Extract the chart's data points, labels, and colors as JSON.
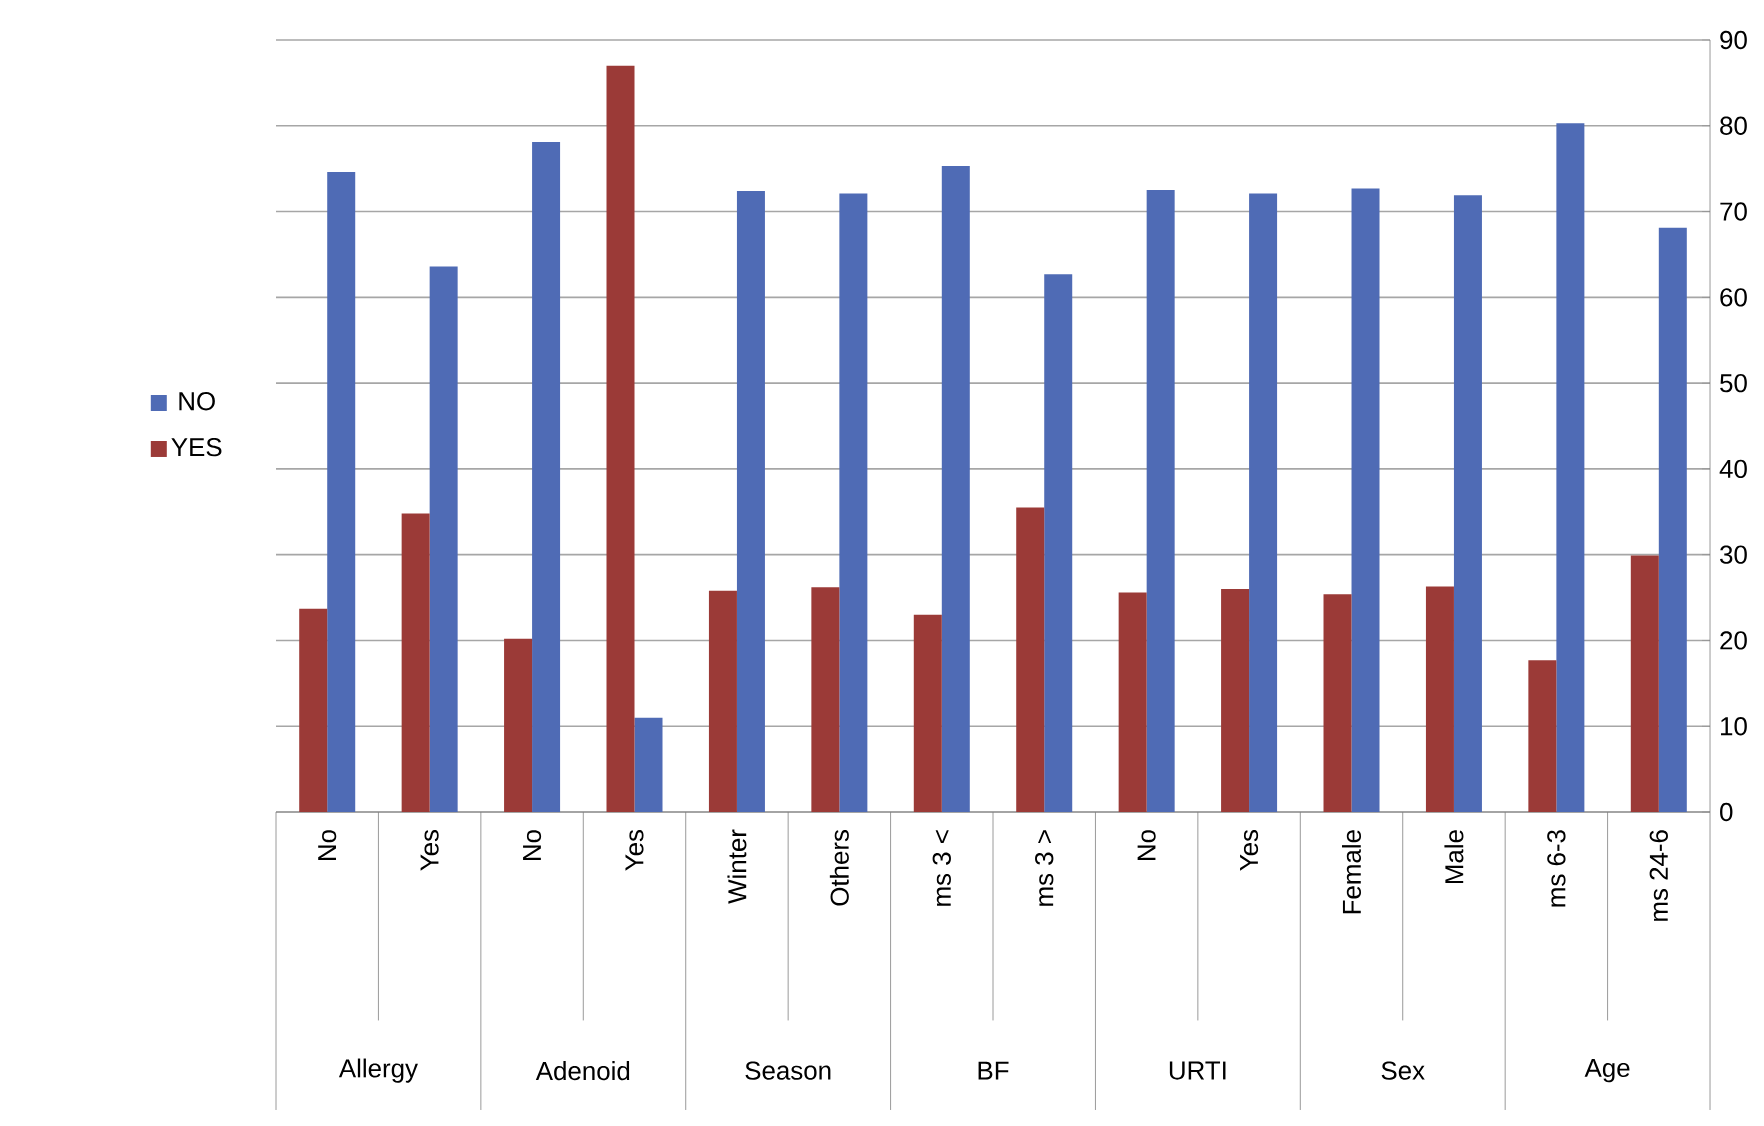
{
  "chart_data": {
    "type": "bar",
    "categories": [
      "No",
      "Yes",
      "No",
      "Yes",
      "Winter",
      "Others",
      "ms 3 <",
      "ms 3 >",
      "No",
      "Yes",
      "Female",
      "Male",
      "ms 6-3",
      "ms 24-6"
    ],
    "series": [
      {
        "name": "NO",
        "color": "#4f6bb5",
        "values": [
          74.6,
          63.6,
          78.1,
          11.0,
          72.4,
          72.1,
          75.3,
          62.7,
          72.5,
          72.1,
          72.7,
          71.9,
          80.3,
          68.1
        ]
      },
      {
        "name": "YES",
        "color": "#9b3a37",
        "values": [
          23.7,
          34.8,
          20.2,
          87.0,
          25.8,
          26.2,
          23.0,
          35.5,
          25.6,
          26.0,
          25.4,
          26.3,
          17.7,
          29.9
        ]
      }
    ],
    "annotations": [
      "Allergy",
      "Adenoid",
      "Season",
      "BF",
      "URTI",
      "Sex",
      "Age"
    ],
    "ylim": [
      0,
      90
    ],
    "yticks": [
      0,
      10,
      20,
      30,
      40,
      50,
      60,
      70,
      80,
      90
    ],
    "grid": "y",
    "legend": "left"
  }
}
